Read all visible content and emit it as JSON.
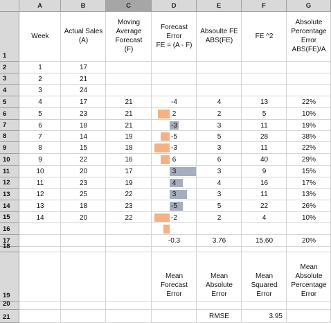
{
  "columns": [
    "A",
    "B",
    "C",
    "D",
    "E",
    "F",
    "G"
  ],
  "selected_column": "C",
  "rows": [
    "1",
    "2",
    "3",
    "4",
    "5",
    "6",
    "7",
    "8",
    "9",
    "10",
    "11",
    "12",
    "13",
    "14",
    "15",
    "16",
    "17",
    "18",
    "19",
    "20",
    "21"
  ],
  "headers": {
    "week": "Week",
    "actual_sales": "Actual Sales\n(A)",
    "moving_average": "Moving\nAverage\nForecast\n(F)",
    "forecast_error": "Forecast\nError\nFE = (A - F)",
    "absolute_fe": "Absoulte FE\nABS(FE)",
    "fe_squared": "FE ^2",
    "abs_pct_error": "Absolute\nPercentage\nError\nABS(FE)/A"
  },
  "data_rows": [
    {
      "week": "1",
      "actual": "17",
      "forecast": "",
      "error": "",
      "abs_error": "",
      "sq_error": "",
      "pct_error": ""
    },
    {
      "week": "2",
      "actual": "21",
      "forecast": "",
      "error": "",
      "abs_error": "",
      "sq_error": "",
      "pct_error": ""
    },
    {
      "week": "3",
      "actual": "24",
      "forecast": "",
      "error": "",
      "abs_error": "",
      "sq_error": "",
      "pct_error": ""
    },
    {
      "week": "4",
      "actual": "17",
      "forecast": "21",
      "error": "-4",
      "abs_error": "4",
      "sq_error": "13",
      "pct_error": "22%"
    },
    {
      "week": "5",
      "actual": "23",
      "forecast": "21",
      "error": "2",
      "abs_error": "2",
      "sq_error": "5",
      "pct_error": "10%"
    },
    {
      "week": "6",
      "actual": "18",
      "forecast": "21",
      "error": "-3",
      "abs_error": "3",
      "sq_error": "11",
      "pct_error": "19%"
    },
    {
      "week": "7",
      "actual": "14",
      "forecast": "19",
      "error": "-5",
      "abs_error": "5",
      "sq_error": "28",
      "pct_error": "38%"
    },
    {
      "week": "8",
      "actual": "15",
      "forecast": "18",
      "error": "-3",
      "abs_error": "3",
      "sq_error": "11",
      "pct_error": "22%"
    },
    {
      "week": "9",
      "actual": "22",
      "forecast": "16",
      "error": "6",
      "abs_error": "6",
      "sq_error": "40",
      "pct_error": "29%"
    },
    {
      "week": "10",
      "actual": "20",
      "forecast": "17",
      "error": "3",
      "abs_error": "3",
      "sq_error": "9",
      "pct_error": "15%"
    },
    {
      "week": "11",
      "actual": "23",
      "forecast": "19",
      "error": "4",
      "abs_error": "4",
      "sq_error": "16",
      "pct_error": "17%"
    },
    {
      "week": "12",
      "actual": "25",
      "forecast": "22",
      "error": "3",
      "abs_error": "3",
      "sq_error": "11",
      "pct_error": "13%"
    },
    {
      "week": "13",
      "actual": "18",
      "forecast": "23",
      "error": "-5",
      "abs_error": "5",
      "sq_error": "22",
      "pct_error": "26%"
    },
    {
      "week": "14",
      "actual": "20",
      "forecast": "22",
      "error": "-2",
      "abs_error": "2",
      "sq_error": "4",
      "pct_error": "10%"
    }
  ],
  "error_bar_values": [
    -4,
    2,
    -3,
    -5,
    -3,
    6,
    3,
    4,
    3,
    -5,
    -2
  ],
  "colors": {
    "negative_bar": "#f4b183",
    "positive_bar": "#a6aebd",
    "header_bg": "#d9d9d9",
    "selected_header_bg": "#a6a6a6"
  },
  "summary": {
    "mean_forecast_error": "-0.3",
    "mean_absolute_error": "3.76",
    "mean_squared_error": "15.60",
    "mean_abs_pct_error": "20%"
  },
  "summary_labels": {
    "mfe": "Mean\nForecast\nError",
    "mae": "Mean\nAbsolute\nError",
    "mse": "Mean\nSquared\nError",
    "mape": "Mean\nAbsolute\nPercentage\nError"
  },
  "rmse": {
    "label": "RMSE",
    "value": "3.95"
  }
}
